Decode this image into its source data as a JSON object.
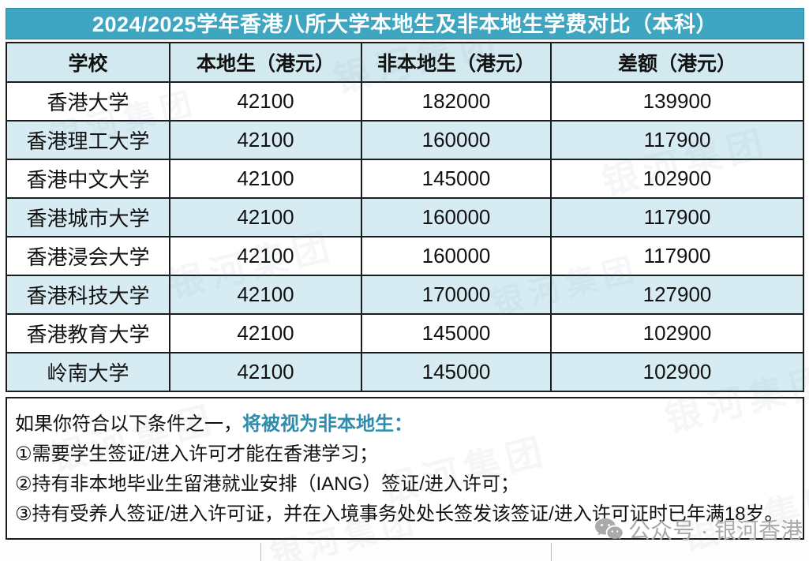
{
  "chart_data": {
    "type": "table",
    "title": "2024/2025学年香港八所大学本地生及非本地生学费对比（本科）",
    "columns": [
      "学校",
      "本地生（港元）",
      "非本地生（港元）",
      "差额（港元）"
    ],
    "rows": [
      [
        "香港大学",
        42100,
        182000,
        139900
      ],
      [
        "香港理工大学",
        42100,
        160000,
        117900
      ],
      [
        "香港中文大学",
        42100,
        145000,
        102900
      ],
      [
        "香港城市大学",
        42100,
        160000,
        117900
      ],
      [
        "香港浸会大学",
        42100,
        160000,
        117900
      ],
      [
        "香港科技大学",
        42100,
        170000,
        127900
      ],
      [
        "香港教育大学",
        42100,
        145000,
        102900
      ],
      [
        "岭南大学",
        42100,
        145000,
        102900
      ]
    ],
    "layout_hints": {
      "striped_rows": true,
      "stripe_color": "#d7ebf2",
      "header_color": "#d3e9f0"
    }
  },
  "notes": {
    "intro_prefix": "如果你符合以下条件之一，",
    "intro_highlight": "将被视为非本地生：",
    "items": [
      "①需要学生签证/进入许可才能在香港学习；",
      "②持有非本地毕业生留港就业安排（IANG）签证/进入许可；",
      "③持有受养人签证/进入许可证，并在入境事务处处长签发该签证/进入许可证时已年满18岁。"
    ]
  },
  "footer": {
    "account_label": "公众号 · 银河香港",
    "icon": "wechat-icon"
  },
  "watermark": {
    "text": "银河集团"
  },
  "colors": {
    "title_bg": "#3fa6c2",
    "title_text": "#ffffff",
    "header_bg": "#d3e9f0",
    "row_alt_bg": "#d7ebf2",
    "border": "#1c1c1c",
    "note_highlight": "#2f8caa",
    "footer_gray": "#aaaaaa"
  }
}
